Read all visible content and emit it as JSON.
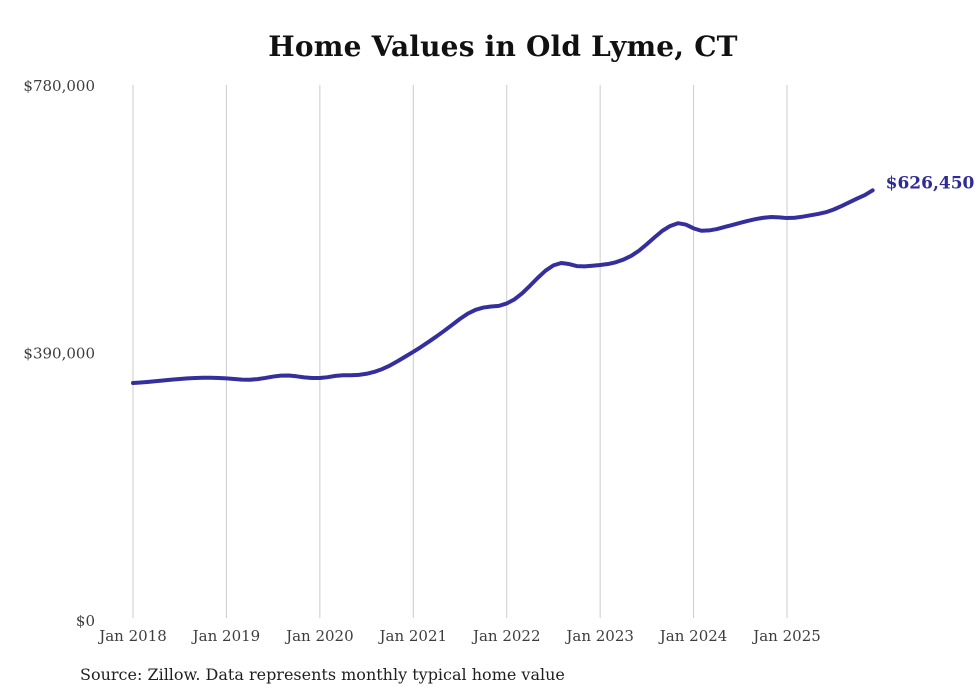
{
  "page": {
    "background": "#FFFFFF"
  },
  "footer": {
    "source_note": "Source: Zillow. Data represents monthly typical home value"
  },
  "colors": {
    "line": "#352F9E",
    "annotation": "#2E2A96",
    "grid": "#CCCCCC",
    "tick_text": "#3D3D3D",
    "title_text": "#111111",
    "source_text": "#1F1F1F",
    "background": "#FFFFFF"
  },
  "chart_data": {
    "type": "line",
    "title": "Home Values in Old Lyme, CT",
    "xlabel": "",
    "ylabel": "",
    "ylim": [
      0,
      780000
    ],
    "grid": "vertical",
    "legend": "none",
    "y_ticks": [
      {
        "value": 780000,
        "label": "$780,000"
      },
      {
        "value": 390000,
        "label": "$390,000"
      },
      {
        "value": 0,
        "label": "$0"
      }
    ],
    "x_ticks": [
      {
        "date": "2018-01",
        "label": "Jan 2018"
      },
      {
        "date": "2019-01",
        "label": "Jan 2019"
      },
      {
        "date": "2020-01",
        "label": "Jan 2020"
      },
      {
        "date": "2021-01",
        "label": "Jan 2021"
      },
      {
        "date": "2022-01",
        "label": "Jan 2022"
      },
      {
        "date": "2023-01",
        "label": "Jan 2023"
      },
      {
        "date": "2024-01",
        "label": "Jan 2024"
      },
      {
        "date": "2025-01",
        "label": "Jan 2025"
      }
    ],
    "annotation": {
      "label": "$626,450",
      "value": 626450,
      "position": "end-of-line"
    },
    "series": [
      {
        "name": "Monthly typical home value",
        "x_start": "2018-01",
        "x_end": "2025-12",
        "x_step_months": 1,
        "values": [
          345500,
          346300,
          347200,
          348200,
          349300,
          350400,
          351400,
          352200,
          352800,
          353100,
          353200,
          352900,
          352300,
          351300,
          350400,
          350300,
          351200,
          352900,
          354900,
          356300,
          356400,
          355300,
          353800,
          352900,
          352800,
          354000,
          355900,
          356900,
          356900,
          357400,
          359000,
          361800,
          365800,
          371000,
          377400,
          384200,
          391000,
          398200,
          405800,
          413600,
          421800,
          430400,
          439000,
          446700,
          452300,
          455500,
          457100,
          458000,
          461500,
          467500,
          476500,
          487500,
          499000,
          509500,
          517000,
          520500,
          519000,
          516000,
          515500,
          516500,
          517600,
          519000,
          521500,
          525500,
          531000,
          538500,
          548000,
          558000,
          567500,
          574500,
          578500,
          576500,
          571000,
          567500,
          568000,
          570000,
          573000,
          576000,
          579000,
          582000,
          584500,
          586500,
          587500,
          587000,
          586000,
          586500,
          588000,
          590000,
          592000,
          594500,
          598500,
          603500,
          609000,
          614500,
          619500,
          626450
        ]
      }
    ]
  }
}
